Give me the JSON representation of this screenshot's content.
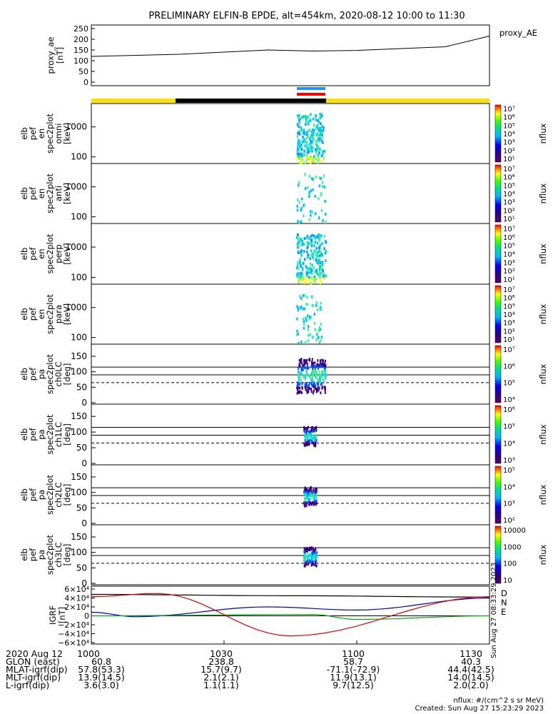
{
  "title": "PRELIMINARY ELFIN-B EPDE, alt=454km, 2020-08-12 10:00 to 11:30",
  "top_panel": {
    "ylabel_lines": [
      "proxy_ae",
      "[nT]"
    ],
    "legend": "proxy_AE",
    "ticks": [
      "250",
      "200",
      "150",
      "100",
      "50",
      "0"
    ]
  },
  "spec_panels": [
    {
      "label_lines": [
        "elb",
        "pef",
        "en",
        "spec2plot",
        "omni",
        "[keV]"
      ],
      "ticks": [
        "1000",
        "100"
      ],
      "cb_ticks": [
        "10⁷",
        "10⁶",
        "10⁵",
        "10⁴",
        "10³",
        "10²",
        "10¹"
      ],
      "cb_label": "nflux"
    },
    {
      "label_lines": [
        "elb",
        "pef",
        "en",
        "spec2plot",
        "anti",
        "[keV]"
      ],
      "ticks": [
        "1000",
        "100"
      ],
      "cb_ticks": [
        "10⁷",
        "10⁶",
        "10⁵",
        "10⁴",
        "10³",
        "10²",
        "10¹"
      ],
      "cb_label": "nflux"
    },
    {
      "label_lines": [
        "elb",
        "pef",
        "en",
        "spec2plot",
        "perp",
        "[keV]"
      ],
      "ticks": [
        "1000",
        "100"
      ],
      "cb_ticks": [
        "10⁷",
        "10⁶",
        "10⁵",
        "10⁴",
        "10³",
        "10²",
        "10¹"
      ],
      "cb_label": "nflux"
    },
    {
      "label_lines": [
        "elb",
        "pef",
        "en",
        "spec2plot",
        "para",
        "[keV]"
      ],
      "ticks": [
        "1000",
        "100"
      ],
      "cb_ticks": [
        "10⁷",
        "10⁶",
        "10⁵",
        "10⁴",
        "10³",
        "10²",
        "10¹"
      ],
      "cb_label": "nflux"
    },
    {
      "label_lines": [
        "elb",
        "pef",
        "pa",
        "spec2plot",
        "ch0LC",
        "[deg]"
      ],
      "ticks": [
        "150",
        "100",
        "50",
        "0"
      ],
      "cb_ticks": [
        "10⁷",
        "10⁶",
        "10⁵",
        "10⁴"
      ],
      "cb_label": "nflux"
    },
    {
      "label_lines": [
        "elb",
        "pef",
        "pa",
        "spec2plot",
        "ch1LC",
        "[deg]"
      ],
      "ticks": [
        "150",
        "100",
        "50",
        "0"
      ],
      "cb_ticks": [
        "10⁶",
        "10⁵",
        "10⁴",
        "10³"
      ],
      "cb_label": "nflux"
    },
    {
      "label_lines": [
        "elb",
        "pef",
        "pa",
        "spec2plot",
        "ch2LC",
        "[deg]"
      ],
      "ticks": [
        "150",
        "100",
        "50",
        "0"
      ],
      "cb_ticks": [
        "10⁵",
        "10⁴",
        "10³",
        "10²"
      ],
      "cb_label": "nflux"
    },
    {
      "label_lines": [
        "elb",
        "pef",
        "pa",
        "spec2plot",
        "ch3LC",
        "[deg]"
      ],
      "ticks": [
        "150",
        "100",
        "50",
        "0"
      ],
      "cb_ticks": [
        "10000",
        "1000",
        "100",
        "10"
      ],
      "cb_label": "nflux"
    }
  ],
  "igrf_panel": {
    "ylabel_lines": [
      "IGRF",
      "[nT]"
    ],
    "ticks": [
      "6×10⁴",
      "4×10⁴",
      "2×10⁴",
      "0",
      "−2×10⁴",
      "−4×10⁴",
      "−6×10⁴"
    ],
    "legend": [
      "D",
      "N",
      "E"
    ],
    "side_text": "Sun Aug 27 08:33:29 2023"
  },
  "x_ticks": [
    "1000",
    "1030",
    "1100",
    "1130"
  ],
  "footer": {
    "labels": [
      "2020 Aug 12",
      "GLON (east)",
      "MLAT-igrf(dip)",
      "MLT-igrf(dip)",
      "L-igrf(dip)"
    ],
    "rows": [
      [
        "60.8",
        "238.8",
        "58.7",
        "40.3"
      ],
      [
        "57.8(53.3)",
        "15.7(9.7)",
        "-71.1(-72.9)",
        "44.4(42.5)"
      ],
      [
        "13.9(14.5)",
        "2.1(2.1)",
        "11.9(13.1)",
        "14.0(14.5)"
      ],
      [
        "3.6(3.0)",
        "1.1(1.1)",
        "9.7(12.5)",
        "2.0(2.0)"
      ]
    ],
    "units_note": "nflux: #/(cm^2 s sr MeV)",
    "created": "Created: Sun Aug 27 15:23:29 2023"
  },
  "chart_data": {
    "type": "line",
    "x_time_range": [
      "10:00",
      "11:30"
    ],
    "proxy_ae": {
      "name": "proxy_AE",
      "x": [
        "10:00",
        "10:20",
        "10:40",
        "10:50",
        "11:00",
        "11:20",
        "11:30"
      ],
      "y": [
        120,
        130,
        150,
        145,
        148,
        165,
        215
      ],
      "ylim": [
        0,
        250
      ]
    },
    "igrf": {
      "series": [
        {
          "name": "D",
          "color": "#000000",
          "x": [
            "10:00",
            "10:45",
            "11:30"
          ],
          "y": [
            48000,
            45000,
            42000
          ]
        },
        {
          "name": "N",
          "color": "#0000cc",
          "x": [
            "10:00",
            "10:10",
            "10:40",
            "11:00",
            "11:30"
          ],
          "y": [
            8000,
            -2000,
            20000,
            13000,
            40000
          ]
        },
        {
          "name": "E",
          "color": "#00aa00",
          "x": [
            "10:00",
            "10:50",
            "11:00",
            "11:30"
          ],
          "y": [
            0,
            3000,
            -8000,
            0
          ]
        },
        {
          "name": "D (red)",
          "color": "#dd0000",
          "x": [
            "10:00",
            "10:15",
            "10:45",
            "11:30"
          ],
          "y": [
            43000,
            50000,
            -45000,
            43000
          ]
        }
      ],
      "ylim": [
        -60000,
        60000
      ]
    },
    "energy_ylim_keV": [
      60,
      6000
    ],
    "pa_ylim_deg": [
      0,
      180
    ]
  }
}
